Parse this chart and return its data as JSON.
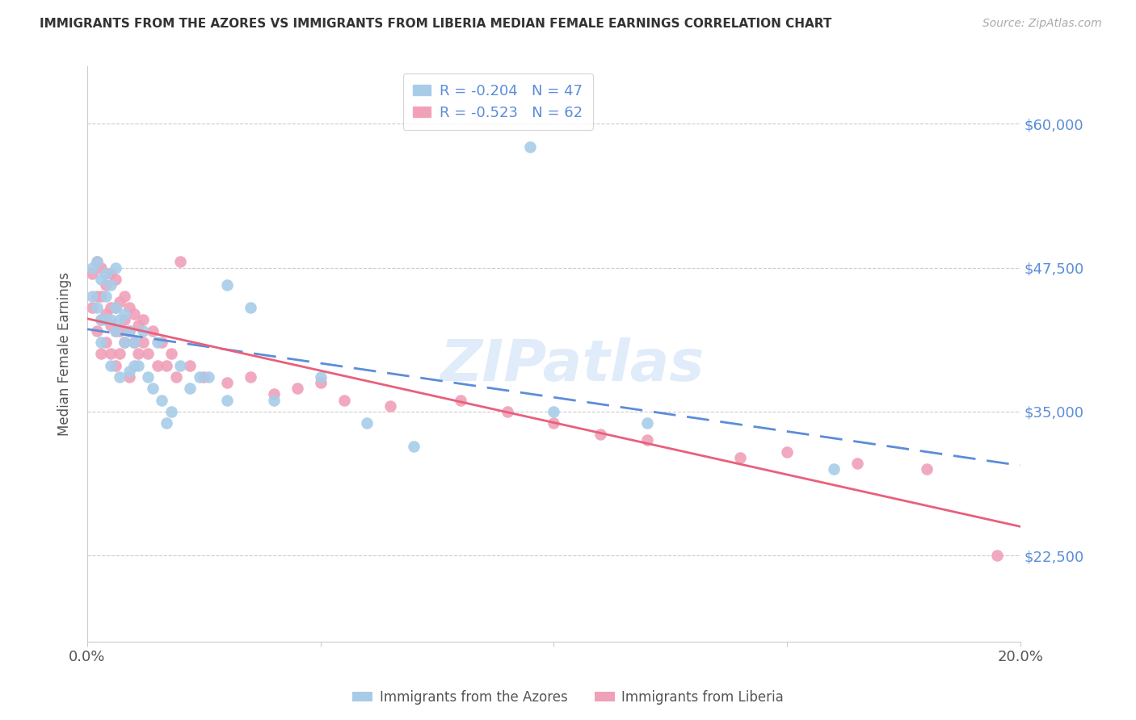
{
  "title": "IMMIGRANTS FROM THE AZORES VS IMMIGRANTS FROM LIBERIA MEDIAN FEMALE EARNINGS CORRELATION CHART",
  "source": "Source: ZipAtlas.com",
  "ylabel": "Median Female Earnings",
  "xlim": [
    0.0,
    0.2
  ],
  "ylim": [
    15000,
    65000
  ],
  "yticks": [
    22500,
    35000,
    47500,
    60000
  ],
  "ytick_labels": [
    "$22,500",
    "$35,000",
    "$47,500",
    "$60,000"
  ],
  "xticks": [
    0.0,
    0.05,
    0.1,
    0.15,
    0.2
  ],
  "xtick_labels": [
    "0.0%",
    "",
    "",
    "",
    "20.0%"
  ],
  "legend_label1": "Immigrants from the Azores",
  "legend_label2": "Immigrants from Liberia",
  "R1": -0.204,
  "N1": 47,
  "R2": -0.523,
  "N2": 62,
  "color1": "#a8cce8",
  "color2": "#f0a0b8",
  "line_color1": "#5b8dd9",
  "line_color2": "#e8607a",
  "background_color": "#ffffff",
  "watermark": "ZIPatlas",
  "azores_x": [
    0.001,
    0.001,
    0.002,
    0.002,
    0.003,
    0.003,
    0.003,
    0.004,
    0.004,
    0.004,
    0.005,
    0.005,
    0.005,
    0.006,
    0.006,
    0.006,
    0.007,
    0.007,
    0.008,
    0.008,
    0.009,
    0.009,
    0.01,
    0.01,
    0.011,
    0.012,
    0.013,
    0.014,
    0.015,
    0.016,
    0.017,
    0.018,
    0.02,
    0.022,
    0.024,
    0.026,
    0.03,
    0.03,
    0.035,
    0.04,
    0.05,
    0.06,
    0.07,
    0.095,
    0.1,
    0.12,
    0.16
  ],
  "azores_y": [
    47500,
    45000,
    48000,
    44000,
    46500,
    43000,
    41000,
    47000,
    45000,
    43000,
    46000,
    43000,
    39000,
    47500,
    44000,
    42000,
    43000,
    38000,
    43500,
    41000,
    42000,
    38500,
    41000,
    39000,
    39000,
    42000,
    38000,
    37000,
    41000,
    36000,
    34000,
    35000,
    39000,
    37000,
    38000,
    38000,
    46000,
    36000,
    44000,
    36000,
    38000,
    34000,
    32000,
    58000,
    35000,
    34000,
    30000
  ],
  "liberia_x": [
    0.001,
    0.001,
    0.002,
    0.002,
    0.002,
    0.003,
    0.003,
    0.003,
    0.003,
    0.004,
    0.004,
    0.004,
    0.005,
    0.005,
    0.005,
    0.005,
    0.006,
    0.006,
    0.006,
    0.006,
    0.007,
    0.007,
    0.007,
    0.008,
    0.008,
    0.008,
    0.009,
    0.009,
    0.009,
    0.01,
    0.01,
    0.011,
    0.011,
    0.012,
    0.012,
    0.013,
    0.014,
    0.015,
    0.016,
    0.017,
    0.018,
    0.019,
    0.02,
    0.022,
    0.025,
    0.03,
    0.035,
    0.04,
    0.045,
    0.05,
    0.055,
    0.065,
    0.08,
    0.09,
    0.1,
    0.11,
    0.12,
    0.14,
    0.15,
    0.165,
    0.18,
    0.195
  ],
  "liberia_y": [
    47000,
    44000,
    48000,
    45000,
    42000,
    47500,
    45000,
    43000,
    40000,
    46000,
    43500,
    41000,
    47000,
    44000,
    42500,
    40000,
    46500,
    44000,
    42000,
    39000,
    44500,
    42000,
    40000,
    45000,
    43000,
    41000,
    44000,
    42000,
    38000,
    43500,
    41000,
    42500,
    40000,
    43000,
    41000,
    40000,
    42000,
    39000,
    41000,
    39000,
    40000,
    38000,
    48000,
    39000,
    38000,
    37500,
    38000,
    36500,
    37000,
    37500,
    36000,
    35500,
    36000,
    35000,
    34000,
    33000,
    32500,
    31000,
    31500,
    30500,
    30000,
    22500
  ]
}
